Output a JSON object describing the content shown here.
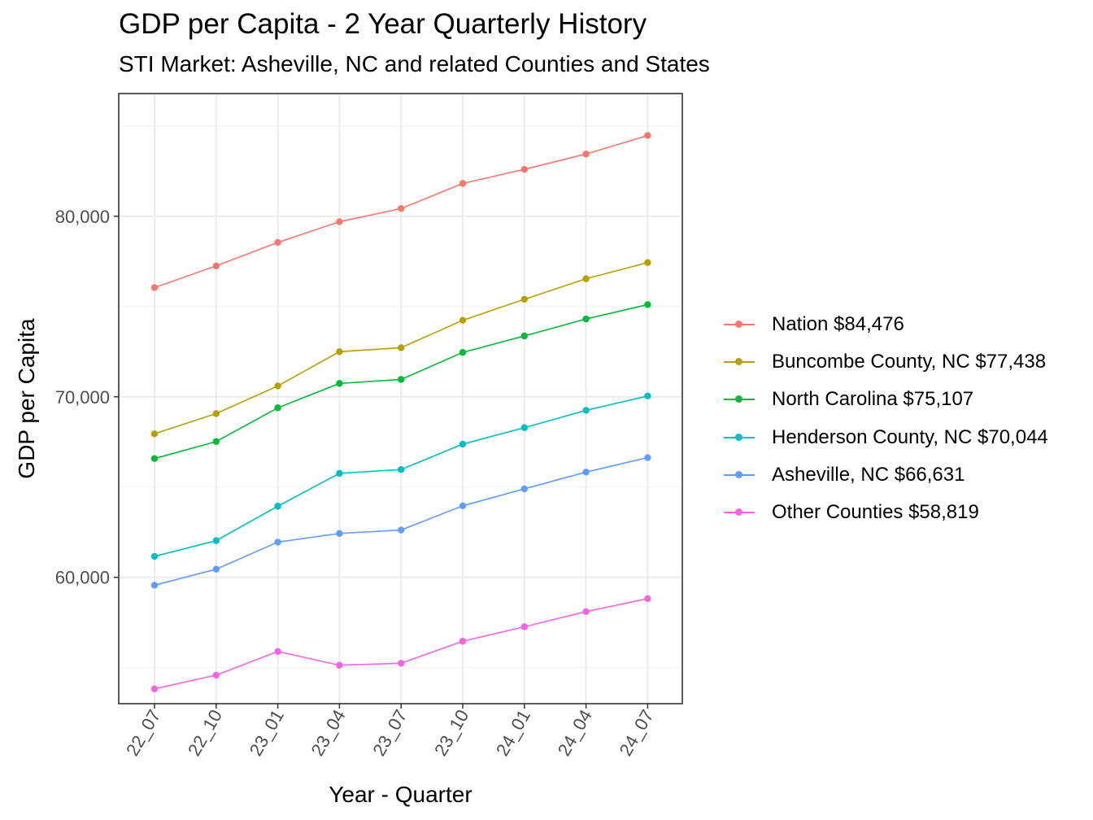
{
  "chart_data": {
    "type": "line",
    "title": "GDP per Capita - 2 Year Quarterly History",
    "subtitle": "STI Market: Asheville, NC and related Counties and States",
    "xlabel": "Year - Quarter",
    "ylabel": "GDP per Capita",
    "categories": [
      "22_07",
      "22_10",
      "23_01",
      "23_04",
      "23_07",
      "23_10",
      "24_01",
      "24_04",
      "24_07"
    ],
    "ylim": [
      53000,
      86800
    ],
    "y_ticks": [
      60000,
      70000,
      80000
    ],
    "y_tick_labels": [
      "60,000",
      "70,000",
      "80,000"
    ],
    "grid": true,
    "legend_position": "right",
    "series": [
      {
        "name": "Nation $84,476",
        "color": "#F8766D",
        "values": [
          76050,
          77250,
          78550,
          79700,
          80430,
          81820,
          82600,
          83450,
          84476
        ]
      },
      {
        "name": "Buncombe County, NC $77,438",
        "color": "#B79F00",
        "values": [
          67950,
          69070,
          70600,
          72500,
          72720,
          74240,
          75400,
          76540,
          77438
        ]
      },
      {
        "name": "North Carolina $75,107",
        "color": "#00BA38",
        "values": [
          66580,
          67520,
          69390,
          70740,
          70960,
          72460,
          73370,
          74310,
          75107
        ]
      },
      {
        "name": "Henderson County, NC $70,044",
        "color": "#00BFC4",
        "values": [
          61160,
          62030,
          63940,
          65760,
          65970,
          67380,
          68290,
          69250,
          70044
        ]
      },
      {
        "name": "Asheville, NC $66,631",
        "color": "#619CFF",
        "values": [
          59560,
          60450,
          61950,
          62430,
          62620,
          63960,
          64900,
          65830,
          66631
        ]
      },
      {
        "name": "Other Counties $58,819",
        "color": "#F564E3",
        "values": [
          53820,
          54580,
          55890,
          55130,
          55240,
          56460,
          57260,
          58100,
          58819
        ]
      }
    ]
  }
}
